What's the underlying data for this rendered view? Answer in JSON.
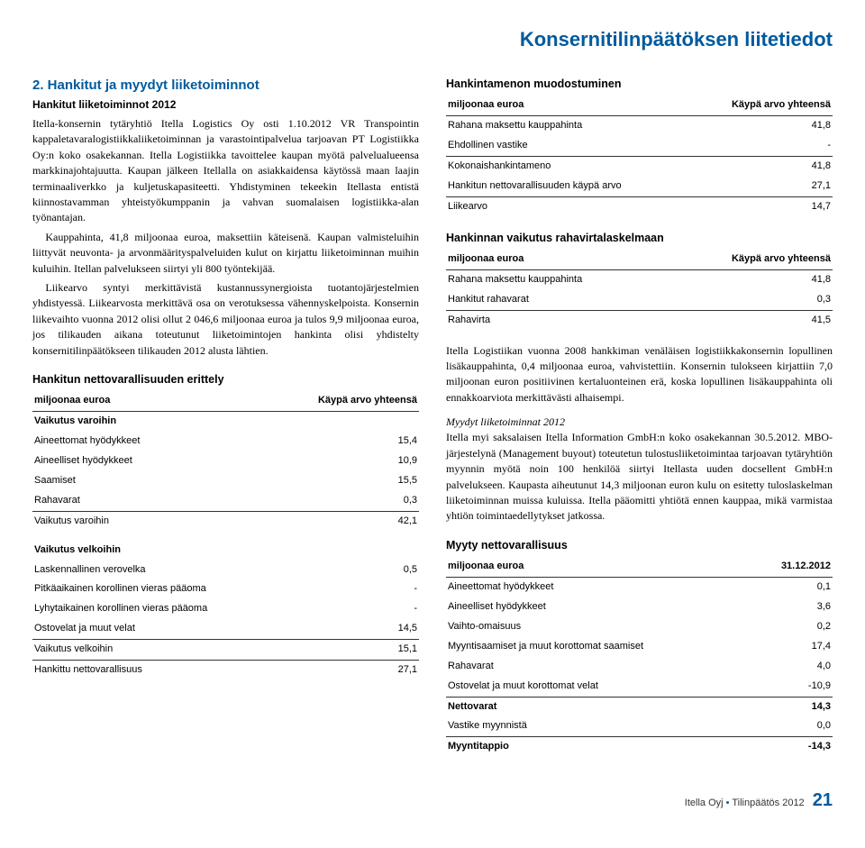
{
  "pageTitle": "Konsernitilinpäätöksen liitetiedot",
  "left": {
    "heading": "2. Hankitut ja myydyt liiketoiminnot",
    "subhead": "Hankitut liiketoiminnot 2012",
    "p1": "Itella-konsernin tytäryhtiö Itella Logistics Oy osti 1.10.2012 VR Transpointin kappaletavaralogistiikkaliiketoiminnan ja varastointipalvelua tarjoavan PT Logistiikka Oy:n koko osakekannan. Itella Logistiikka tavoittelee kaupan myötä palvelualueensa markkinajohtajuutta. Kaupan jälkeen Itellalla on asiakkaidensa käytössä maan laajin terminaaliverkko ja kuljetuskapasiteetti. Yhdistyminen tekeekin Itellasta entistä kiinnostavamman yhteistyökumppanin ja vahvan suomalaisen logistiikka-alan työnantajan.",
    "p2": "Kauppahinta, 41,8 miljoonaa euroa, maksettiin käteisenä. Kaupan valmisteluihin liittyvät neuvonta- ja arvonmäärityspalveluiden kulut on kirjattu liiketoiminnan muihin kuluihin. Itellan palvelukseen siirtyi yli 800 työntekijää.",
    "p3": "Liikearvo syntyi merkittävistä kustannussynergioista tuotantojärjestelmien yhdistyessä. Liikearvosta merkittävä osa on verotuksessa vähennyskelpoista. Konsernin liikevaihto vuonna 2012 olisi ollut 2 046,6 miljoonaa euroa ja tulos 9,9 miljoonaa euroa, jos tilikauden aikana toteutunut liiketoimintojen hankinta olisi yhdistelty konsernitilinpäätökseen tilikauden 2012 alusta lähtien.",
    "t1_heading": "Hankitun nettovarallisuuden erittely",
    "t1_h1": "miljoonaa euroa",
    "t1_h2": "Käypä arvo yhteensä",
    "t1_group1": "Vaikutus varoihin",
    "t1_rows1": [
      {
        "l": "Aineettomat hyödykkeet",
        "v": "15,4",
        "u": false
      },
      {
        "l": "Aineelliset hyödykkeet",
        "v": "10,9",
        "u": false
      },
      {
        "l": "Saamiset",
        "v": "15,5",
        "u": false
      },
      {
        "l": "Rahavarat",
        "v": "0,3",
        "u": true
      },
      {
        "l": "Vaikutus varoihin",
        "v": "42,1",
        "u": false
      }
    ],
    "t1_group2": "Vaikutus velkoihin",
    "t1_rows2": [
      {
        "l": "Laskennallinen verovelka",
        "v": "0,5",
        "u": false
      },
      {
        "l": "Pitkäaikainen korollinen vieras pääoma",
        "v": "-",
        "u": false
      },
      {
        "l": "Lyhytaikainen korollinen vieras pääoma",
        "v": "-",
        "u": false
      },
      {
        "l": "Ostovelat ja muut velat",
        "v": "14,5",
        "u": true
      },
      {
        "l": "Vaikutus velkoihin",
        "v": "15,1",
        "u": true
      },
      {
        "l": "Hankittu nettovarallisuus",
        "v": "27,1",
        "u": false
      }
    ]
  },
  "right": {
    "t2_heading": "Hankintamenon muodostuminen",
    "t2_h1": "miljoonaa euroa",
    "t2_h2": "Käypä arvo yhteensä",
    "t2_rows": [
      {
        "l": "Rahana maksettu kauppahinta",
        "v": "41,8",
        "u": false
      },
      {
        "l": "Ehdollinen vastike",
        "v": "-",
        "u": true
      },
      {
        "l": "Kokonaishankintameno",
        "v": "41,8",
        "u": false
      },
      {
        "l": "Hankitun nettovarallisuuden käypä arvo",
        "v": "27,1",
        "u": true
      },
      {
        "l": "Liikearvo",
        "v": "14,7",
        "u": false
      }
    ],
    "t3_heading": "Hankinnan vaikutus rahavirtalaskelmaan",
    "t3_h1": "miljoonaa euroa",
    "t3_h2": "Käypä arvo yhteensä",
    "t3_rows": [
      {
        "l": "Rahana maksettu kauppahinta",
        "v": "41,8",
        "u": false
      },
      {
        "l": "Hankitut rahavarat",
        "v": "0,3",
        "u": true
      },
      {
        "l": "Rahavirta",
        "v": "41,5",
        "u": false
      }
    ],
    "p1": "Itella Logistiikan vuonna 2008 hankkiman venäläisen logistiikkakonsernin lopullinen lisäkauppahinta, 0,4 miljoonaa euroa, vahvistettiin. Konsernin tulokseen kirjattiin 7,0 miljoonan euron positiivinen kertaluonteinen erä, koska lopullinen lisäkauppahinta oli ennakkoarviota merkittävästi alhaisempi.",
    "sold_head": "Myydyt liiketoiminnat 2012",
    "p2": "Itella myi saksalaisen Itella Information GmbH:n koko osakekannan 30.5.2012. MBO-järjestelynä (Management buyout) toteutetun tulostusliiketoimintaa tarjoavan tytäryhtiön myynnin myötä noin 100 henkilöä siirtyi Itellasta uuden docsellent GmbH:n palvelukseen. Kaupasta aiheutunut 14,3 miljoonan euron kulu on esitetty tuloslaskelman liiketoiminnan muissa kuluissa. Itella pääomitti yhtiötä ennen kauppaa, mikä varmistaa yhtiön toimintaedellytykset jatkossa.",
    "t4_heading": "Myyty nettovarallisuus",
    "t4_h1": "miljoonaa euroa",
    "t4_h2": "31.12.2012",
    "t4_rows": [
      {
        "l": "Aineettomat hyödykkeet",
        "v": "0,1",
        "u": false,
        "b": false
      },
      {
        "l": "Aineelliset hyödykkeet",
        "v": "3,6",
        "u": false,
        "b": false
      },
      {
        "l": "Vaihto-omaisuus",
        "v": "0,2",
        "u": false,
        "b": false
      },
      {
        "l": "Myyntisaamiset ja muut korottomat saamiset",
        "v": "17,4",
        "u": false,
        "b": false
      },
      {
        "l": "Rahavarat",
        "v": "4,0",
        "u": false,
        "b": false
      },
      {
        "l": "Ostovelat ja muut korottomat velat",
        "v": "-10,9",
        "u": true,
        "b": false
      },
      {
        "l": "Nettovarat",
        "v": "14,3",
        "u": false,
        "b": true
      },
      {
        "l": "Vastike myynnistä",
        "v": "0,0",
        "u": true,
        "b": false
      },
      {
        "l": "Myyntitappio",
        "v": "-14,3",
        "u": false,
        "b": true
      }
    ]
  },
  "footer": {
    "text": "Itella Oyj",
    "sep": "•",
    "doc": "Tilinpäätös 2012",
    "page": "21"
  }
}
